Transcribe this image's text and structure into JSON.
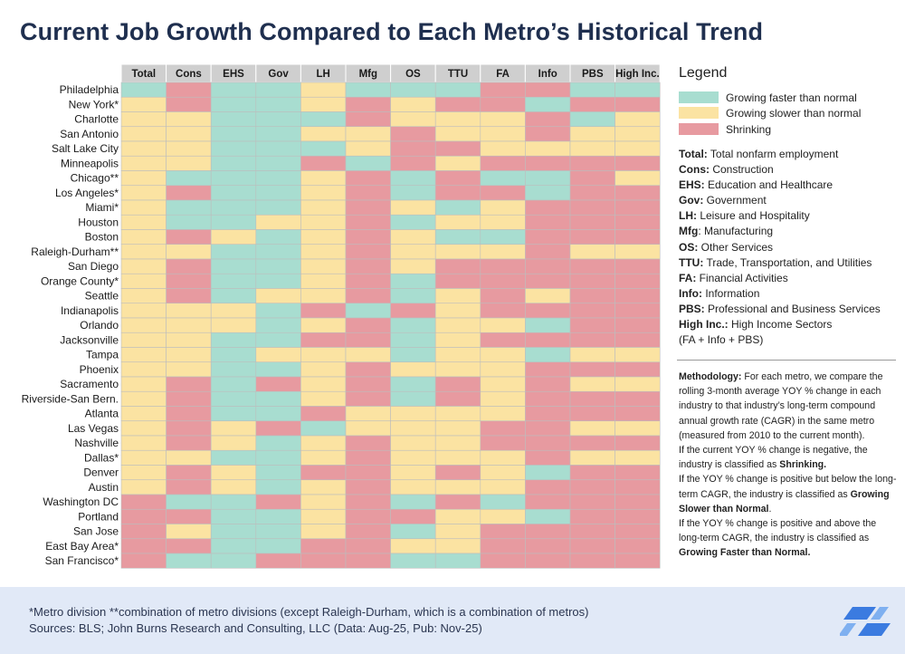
{
  "title": "Current Job Growth Compared to Each Metro’s Historical Trend",
  "colors": {
    "F": "#a8ddd0",
    "S": "#fbe3a2",
    "X": "#e79aa0",
    "header": "#cfcfcf",
    "grid": "#bdbdbd"
  },
  "legend": {
    "title": "Legend",
    "items": [
      {
        "key": "F",
        "label": "Growing faster than normal"
      },
      {
        "key": "S",
        "label": "Growing slower than normal"
      },
      {
        "key": "X",
        "label": "Shrinking"
      }
    ],
    "definitions": [
      {
        "abbr": "Total:",
        "text": " Total nonfarm employment"
      },
      {
        "abbr": "Cons:",
        "text": " Construction"
      },
      {
        "abbr": "EHS:",
        "text": " Education and Healthcare"
      },
      {
        "abbr": "Gov:",
        "text": " Government"
      },
      {
        "abbr": "LH:",
        "text": " Leisure and Hospitality"
      },
      {
        "abbr": "Mfg",
        "text": ": Manufacturing"
      },
      {
        "abbr": "OS:",
        "text": " Other Services"
      },
      {
        "abbr": "TTU:",
        "text": " Trade, Transportation, and Utilities"
      },
      {
        "abbr": "FA:",
        "text": " Financial Activities"
      },
      {
        "abbr": "Info:",
        "text": " Information"
      },
      {
        "abbr": "PBS:",
        "text": " Professional and Business Services"
      },
      {
        "abbr": "High Inc.:",
        "text": " High Income Sectors"
      },
      {
        "abbr": "",
        "text": "(FA + Info + PBS)"
      }
    ]
  },
  "methodology": [
    {
      "text": "Methodology:",
      "bold": true
    },
    {
      "text": " For each metro, we compare the rolling 3-month average YOY % change in each industry to that industry’s long-term compound annual growth rate (CAGR) in the same metro (measured from 2010 to the current month).",
      "bold": false,
      "br": true
    },
    {
      "text": "If the current YOY % change is negative, the industry is classified as ",
      "bold": false
    },
    {
      "text": "Shrinking.",
      "bold": true,
      "br": true
    },
    {
      "text": "If the YOY % change is positive but below the long-term CAGR, the industry is classified as ",
      "bold": false
    },
    {
      "text": "Growing Slower than Normal",
      "bold": true
    },
    {
      "text": ".",
      "bold": false,
      "br": true
    },
    {
      "text": "If the YOY % change is positive and above the long-term CAGR, the industry is classified as ",
      "bold": false
    },
    {
      "text": "Growing Faster than Normal.",
      "bold": true
    }
  ],
  "footer": {
    "note": "*Metro division **combination of metro divisions (except Raleigh-Durham, which is a combination of metros)",
    "sources": "Sources: BLS; John Burns Research and Consulting, LLC (Data: Aug-25, Pub: Nov-25)"
  },
  "chart_data": {
    "type": "heatmap",
    "columns": [
      "Total",
      "Cons",
      "EHS",
      "Gov",
      "LH",
      "Mfg",
      "OS",
      "TTU",
      "FA",
      "Info",
      "PBS",
      "High Inc."
    ],
    "rows": [
      "Philadelphia",
      "New York*",
      "Charlotte",
      "San Antonio",
      "Salt Lake City",
      "Minneapolis",
      "Chicago**",
      "Los Angeles*",
      "Miami*",
      "Houston",
      "Boston",
      "Raleigh-Durham**",
      "San Diego",
      "Orange County*",
      "Seattle",
      "Indianapolis",
      "Orlando",
      "Jacksonville",
      "Tampa",
      "Phoenix",
      "Sacramento",
      "Riverside-San Bern.",
      "Atlanta",
      "Las Vegas",
      "Nashville",
      "Dallas*",
      "Denver",
      "Austin",
      "Washington DC",
      "Portland",
      "San Jose",
      "East Bay Area*",
      "San Francisco*"
    ],
    "categories": {
      "F": "Growing faster than normal",
      "S": "Growing slower than normal",
      "X": "Shrinking"
    },
    "values": [
      "FXFFSFFFXXFF",
      "SXFFSXSXXFXX",
      "SSFFFXSSSXFS",
      "SSFFSSXSSXSS",
      "SSFFFSXXSSSS",
      "SSFFXFXSXXXX",
      "SFFFSXFXFFXS",
      "SXFFSXFXXFXX",
      "SFFFSXSFSXXX",
      "SFFSSXFSSXXX",
      "SXSFSXSFFXXX",
      "SSFFSXSSSXSS",
      "SXFFSXSXXXXX",
      "SXFFSXFXXXXX",
      "SXFSSXFSXSXX",
      "SSSFXFXSXXXX",
      "SSSFSXFSSFXX",
      "SSFFXXFSXXXX",
      "SSFSSSFSSFSS",
      "SSFFSXSSSXXX",
      "SXFXSXFXSXSS",
      "SXFFSXFXSXXX",
      "SXFFXSSSSXXX",
      "SXSXFSSSXXSS",
      "SXSFSXSSXXXX",
      "SSFFSXSSSXSS",
      "SXSFXXSXSFXX",
      "SXSFSXSSSXXX",
      "XFFXSXFXFXXX",
      "XXFFSXXSSFXX",
      "XSFFSXFSXXXX",
      "XXFFXXSSXXXX",
      "XFFXXXFFXXXX"
    ]
  }
}
